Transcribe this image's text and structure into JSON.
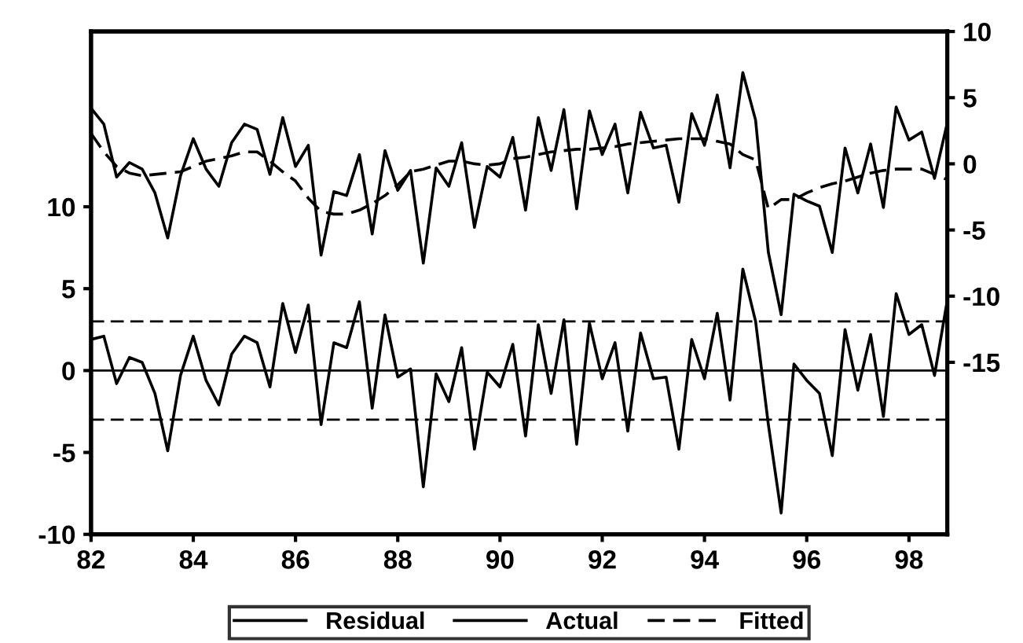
{
  "chart_data": {
    "type": "line",
    "x": [
      82.0,
      82.25,
      82.5,
      82.75,
      83.0,
      83.25,
      83.5,
      83.75,
      84.0,
      84.25,
      84.5,
      84.75,
      85.0,
      85.25,
      85.5,
      85.75,
      86.0,
      86.25,
      86.5,
      86.75,
      87.0,
      87.25,
      87.5,
      87.75,
      88.0,
      88.25,
      88.5,
      88.75,
      89.0,
      89.25,
      89.5,
      89.75,
      90.0,
      90.25,
      90.5,
      90.75,
      91.0,
      91.25,
      91.5,
      91.75,
      92.0,
      92.25,
      92.5,
      92.75,
      93.0,
      93.25,
      93.5,
      93.75,
      94.0,
      94.25,
      94.5,
      94.75,
      95.0,
      95.25,
      95.5,
      95.75,
      96.0,
      96.25,
      96.5,
      96.75,
      97.0,
      97.25,
      97.5,
      97.75,
      98.0,
      98.25,
      98.5,
      98.75
    ],
    "series": [
      {
        "name": "Residual",
        "color": "#000000",
        "line_style": "solid",
        "values": [
          1.9,
          2.1,
          -0.8,
          0.8,
          0.5,
          -1.4,
          -4.9,
          -0.3,
          2.1,
          -0.6,
          -2.1,
          1.0,
          2.1,
          1.7,
          -1.0,
          4.1,
          1.1,
          4.0,
          -3.3,
          1.7,
          1.4,
          4.2,
          -2.3,
          3.4,
          -0.4,
          0.1,
          -7.1,
          -0.2,
          -1.9,
          1.4,
          -4.8,
          -0.1,
          -1.0,
          1.6,
          -4.0,
          2.8,
          -1.4,
          3.1,
          -4.5,
          2.9,
          -0.5,
          1.7,
          -3.7,
          2.3,
          -0.5,
          -0.4,
          -4.8,
          1.9,
          -0.5,
          3.5,
          -1.8,
          6.2,
          3.0,
          -3.3,
          -8.7,
          0.4,
          -0.6,
          -1.4,
          -5.2,
          2.5,
          -1.2,
          2.2,
          -2.8,
          4.7,
          2.2,
          2.8,
          -0.3,
          4.3
        ]
      },
      {
        "name": "Actual",
        "color": "#000000",
        "line_style": "solid",
        "axis": "y2",
        "values": [
          4.2,
          3.0,
          -1.0,
          0.1,
          -0.4,
          -2.2,
          -5.6,
          -0.9,
          1.9,
          -0.4,
          -1.7,
          1.6,
          3.0,
          2.6,
          -0.8,
          3.5,
          -0.2,
          1.4,
          -6.9,
          -2.1,
          -2.4,
          0.7,
          -5.3,
          1.0,
          -2.0,
          -0.5,
          -7.5,
          -0.3,
          -1.7,
          1.6,
          -4.8,
          -0.2,
          -1.0,
          2.0,
          -3.5,
          3.5,
          -0.5,
          4.1,
          -3.4,
          4.0,
          0.7,
          3.0,
          -2.2,
          3.9,
          1.2,
          1.4,
          -2.9,
          3.8,
          1.4,
          5.2,
          -0.3,
          6.9,
          3.3,
          -6.7,
          -11.4,
          -2.3,
          -2.8,
          -3.2,
          -6.7,
          1.2,
          -2.2,
          1.5,
          -3.3,
          4.3,
          1.8,
          2.4,
          -1.1,
          3.1
        ]
      },
      {
        "name": "Fitted",
        "color": "#000000",
        "line_style": "dashed",
        "axis": "y2",
        "values": [
          2.3,
          0.9,
          -0.2,
          -0.7,
          -0.9,
          -0.8,
          -0.7,
          -0.6,
          -0.2,
          0.2,
          0.4,
          0.6,
          0.9,
          0.9,
          0.2,
          -0.6,
          -1.3,
          -2.6,
          -3.6,
          -3.8,
          -3.8,
          -3.5,
          -3.0,
          -2.4,
          -1.6,
          -0.6,
          -0.4,
          -0.1,
          0.2,
          0.2,
          0.0,
          -0.1,
          0.0,
          0.4,
          0.5,
          0.7,
          0.9,
          1.0,
          1.1,
          1.1,
          1.2,
          1.3,
          1.5,
          1.6,
          1.7,
          1.8,
          1.9,
          1.9,
          1.9,
          1.7,
          1.5,
          0.7,
          0.3,
          -3.4,
          -2.7,
          -2.7,
          -2.2,
          -1.8,
          -1.5,
          -1.3,
          -1.0,
          -0.7,
          -0.5,
          -0.4,
          -0.4,
          -0.4,
          -0.8,
          -1.2
        ]
      }
    ],
    "xlim": [
      82,
      98.75
    ],
    "xticks": [
      82,
      84,
      86,
      88,
      90,
      92,
      94,
      96,
      98
    ],
    "ylim": [
      -10,
      20.7
    ],
    "yticks": [
      -10,
      -5,
      0,
      5,
      10
    ],
    "y2lim": [
      -28,
      10
    ],
    "y2ticks": [
      -15,
      -10,
      -5,
      0,
      5,
      10
    ],
    "ref_lines": [
      {
        "axis": "y",
        "value": 0,
        "color": "#000000",
        "line_style": "solid"
      },
      {
        "axis": "y",
        "value": 3,
        "color": "#000000",
        "line_style": "dashed"
      },
      {
        "axis": "y",
        "value": -3,
        "color": "#000000",
        "line_style": "dashed"
      }
    ],
    "legend": "bottom",
    "grid": false,
    "marker": "none"
  }
}
